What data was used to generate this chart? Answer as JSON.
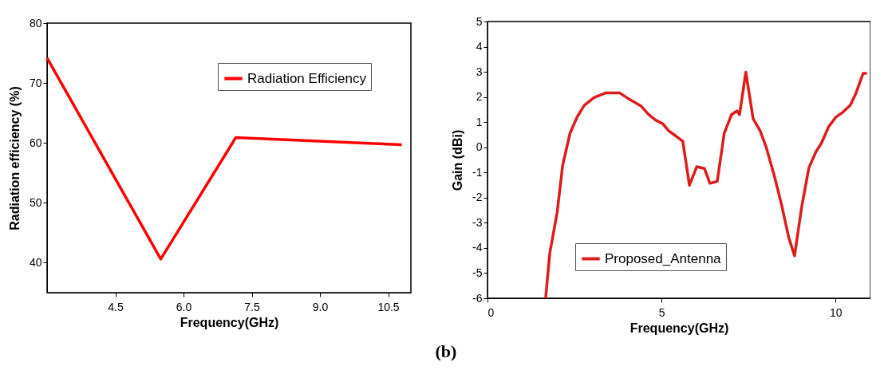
{
  "chart_data": [
    {
      "type": "line",
      "xlabel": "Frequency(GHz)",
      "ylabel": "Radiation efficiency (%)",
      "x": [
        3.0,
        5.5,
        7.15,
        10.8
      ],
      "series": [
        {
          "name": "Radiation Efficiency",
          "color": "#ff0000",
          "values": [
            74.2,
            40.6,
            60.9,
            59.7
          ]
        }
      ],
      "xlim": [
        3.0,
        11.0
      ],
      "xticks": [
        4.5,
        {
          "value": 6,
          "label": "6.0"
        },
        7.5,
        {
          "value": 9,
          "label": "9.0"
        },
        10.5
      ],
      "ylim": [
        35,
        80
      ],
      "yticks": [
        40,
        50,
        60,
        70,
        80
      ],
      "legend": "top right",
      "annotations": [
        "(b)"
      ]
    },
    {
      "type": "line",
      "xlabel": "Frequency(GHz)",
      "ylabel": "Gain (dBi)",
      "x": [
        1.67,
        1.79,
        2.0,
        2.16,
        2.37,
        2.57,
        2.78,
        3.06,
        3.39,
        3.8,
        4.05,
        4.42,
        4.63,
        4.83,
        5.04,
        5.2,
        5.41,
        5.61,
        5.8,
        6.01,
        6.23,
        6.39,
        6.6,
        6.8,
        7.01,
        7.17,
        7.24,
        7.42,
        7.63,
        7.83,
        8.0,
        8.24,
        8.45,
        8.65,
        8.82,
        9.02,
        9.23,
        9.43,
        9.6,
        9.8,
        10.0,
        10.21,
        10.42,
        10.58,
        10.79,
        10.9
      ],
      "series": [
        {
          "name": "Proposed_Antenna",
          "color": "#dd1c1c",
          "values": [
            -6,
            -4.2,
            -2.6,
            -0.71,
            0.56,
            1.19,
            1.67,
            1.98,
            2.16,
            2.16,
            1.93,
            1.63,
            1.3,
            1.08,
            0.93,
            0.66,
            0.45,
            0.24,
            -1.51,
            -0.77,
            -0.84,
            -1.43,
            -1.35,
            0.56,
            1.3,
            1.45,
            1.3,
            2.99,
            1.14,
            0.66,
            0.03,
            -1.14,
            -2.3,
            -3.57,
            -4.31,
            -2.41,
            -0.82,
            -0.19,
            0.19,
            0.82,
            1.19,
            1.4,
            1.67,
            2.14,
            2.94,
            2.94
          ]
        }
      ],
      "xlim": [
        0,
        11
      ],
      "xticks": [
        0,
        5,
        10
      ],
      "ylim": [
        -6,
        5
      ],
      "yticks": [
        -6,
        -5,
        -4,
        -3,
        -2,
        -1,
        0,
        1,
        2,
        3,
        4,
        5
      ],
      "legend": "bottom left"
    }
  ]
}
